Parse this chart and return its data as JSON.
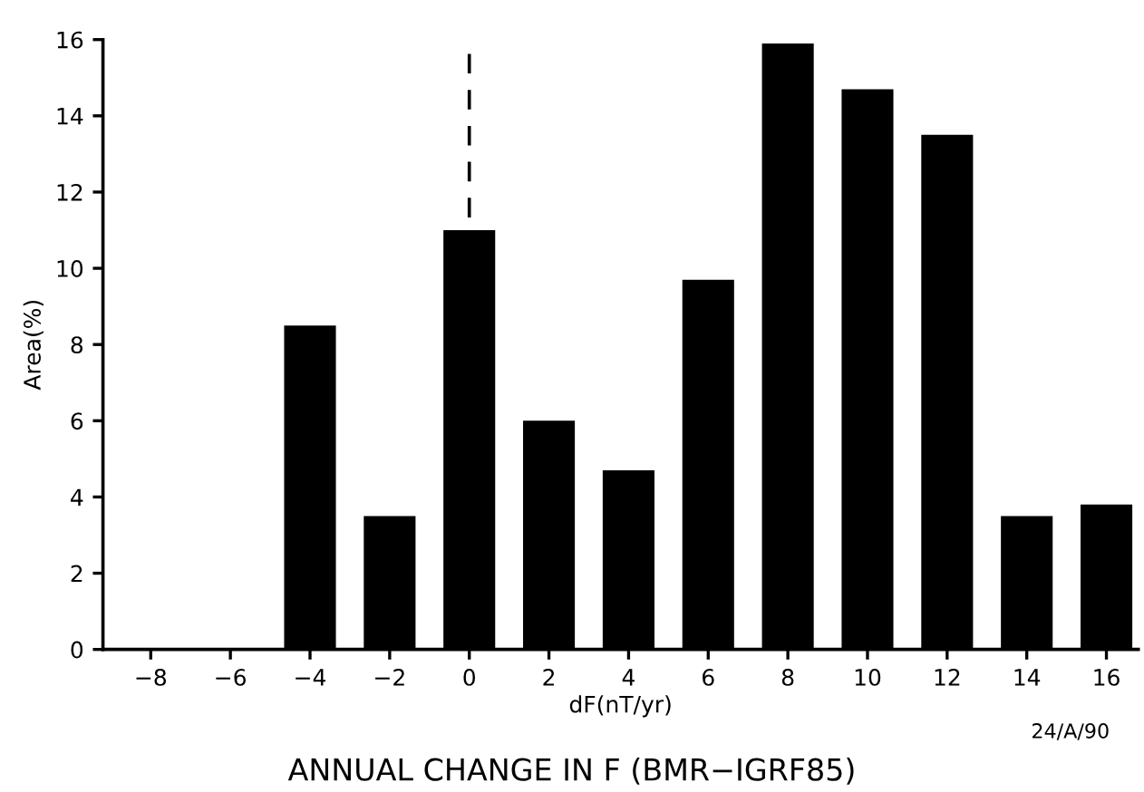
{
  "chart_data": {
    "type": "bar",
    "title": "ANNUAL CHANGE IN F (BMR−IGRF85)",
    "xlabel": "dF(nT/yr)",
    "ylabel": "Area(%)",
    "x": [
      -4,
      -2,
      0,
      2,
      4,
      6,
      8,
      10,
      12,
      14,
      16
    ],
    "values": [
      8.5,
      3.5,
      11.0,
      6.0,
      4.7,
      9.7,
      15.9,
      14.7,
      13.5,
      3.5,
      3.8
    ],
    "color": "#000000",
    "xlim": [
      -9.2,
      16.8
    ],
    "xticks": [
      -8,
      -6,
      -4,
      -2,
      0,
      2,
      4,
      6,
      8,
      10,
      12,
      14,
      16
    ],
    "ylim": [
      0,
      16
    ],
    "yticks": [
      0,
      2,
      4,
      6,
      8,
      10,
      12,
      14,
      16
    ],
    "ref_lines": [
      {
        "axis": "x",
        "value": 0,
        "color": "#000000",
        "line_style": "dashed"
      }
    ],
    "annotations": [
      "24/A/90"
    ],
    "grid": false,
    "legend": false
  }
}
